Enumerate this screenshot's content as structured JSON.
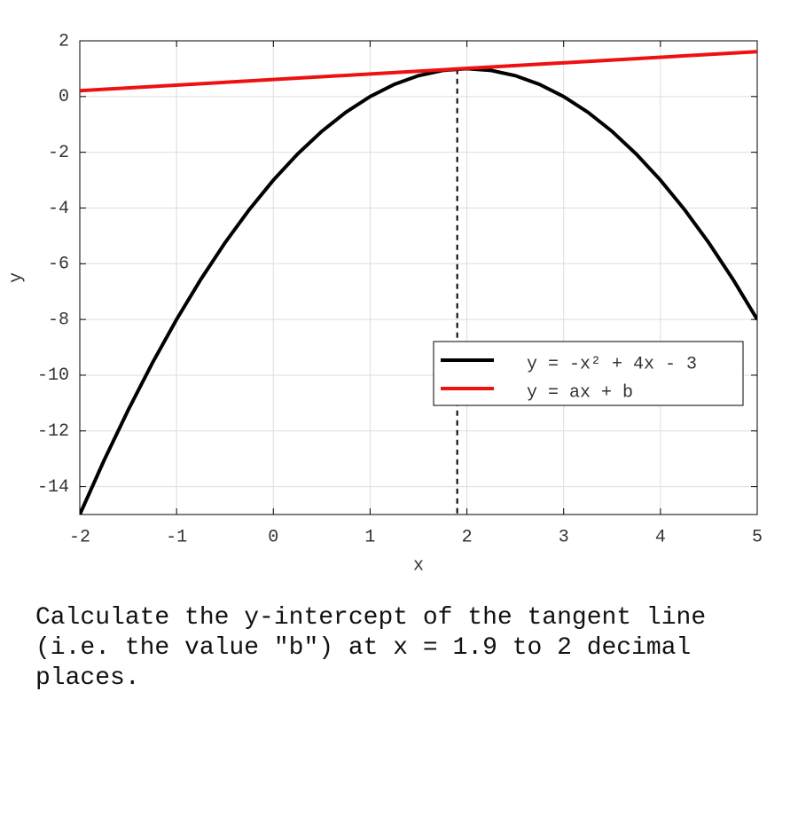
{
  "chart_data": {
    "type": "line",
    "xlabel": "x",
    "ylabel": "y",
    "xlim": [
      -2,
      5
    ],
    "ylim": [
      -15,
      2
    ],
    "xticks": [
      -2,
      -1,
      0,
      1,
      2,
      3,
      4,
      5
    ],
    "yticks": [
      2,
      0,
      -2,
      -4,
      -6,
      -8,
      -10,
      -12,
      -14
    ],
    "grid": true,
    "legend": "lower right",
    "series": [
      {
        "name": "y = -x² + 4x - 3",
        "color": "#000000",
        "x": [
          -2,
          -1.75,
          -1.5,
          -1.25,
          -1,
          -0.75,
          -0.5,
          -0.25,
          0,
          0.25,
          0.5,
          0.75,
          1,
          1.25,
          1.5,
          1.75,
          2,
          2.25,
          2.5,
          2.75,
          3,
          3.25,
          3.5,
          3.75,
          4,
          4.25,
          4.5,
          4.75,
          5
        ],
        "values": [
          -15,
          -13.0625,
          -11.25,
          -9.5625,
          -8,
          -6.5625,
          -5.25,
          -4.0625,
          -3,
          -2.0625,
          -1.25,
          -0.5625,
          0,
          0.4375,
          0.75,
          0.9375,
          1,
          0.9375,
          0.75,
          0.4375,
          0,
          -0.5625,
          -1.25,
          -2.0625,
          -3,
          -4.0625,
          -5.25,
          -6.5625,
          -8
        ]
      },
      {
        "name": "y = ax + b",
        "color": "#ee1111",
        "x": [
          -2,
          5
        ],
        "values": [
          0.21,
          1.61
        ]
      }
    ],
    "vline": {
      "x": 1.9,
      "y": 0.99
    }
  },
  "question": "Calculate the y-intercept of the tangent line (i.e. the value \"b\") at x = 1.9 to 2 decimal places."
}
